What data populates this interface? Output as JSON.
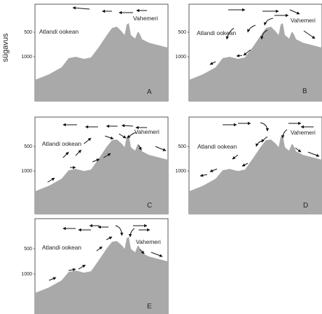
{
  "y_axis_label": "sügavus",
  "depth_ticks": [
    "500",
    "1000"
  ],
  "ocean_label": "Atlandi ookean",
  "sea_label": "Vahemeri",
  "panels": [
    {
      "letter": "A"
    },
    {
      "letter": "B"
    },
    {
      "letter": "C"
    },
    {
      "letter": "D"
    },
    {
      "letter": "E"
    }
  ],
  "colors": {
    "seafloor": "#a9a9a9",
    "arrow": "#111111",
    "frame": "#555555"
  }
}
